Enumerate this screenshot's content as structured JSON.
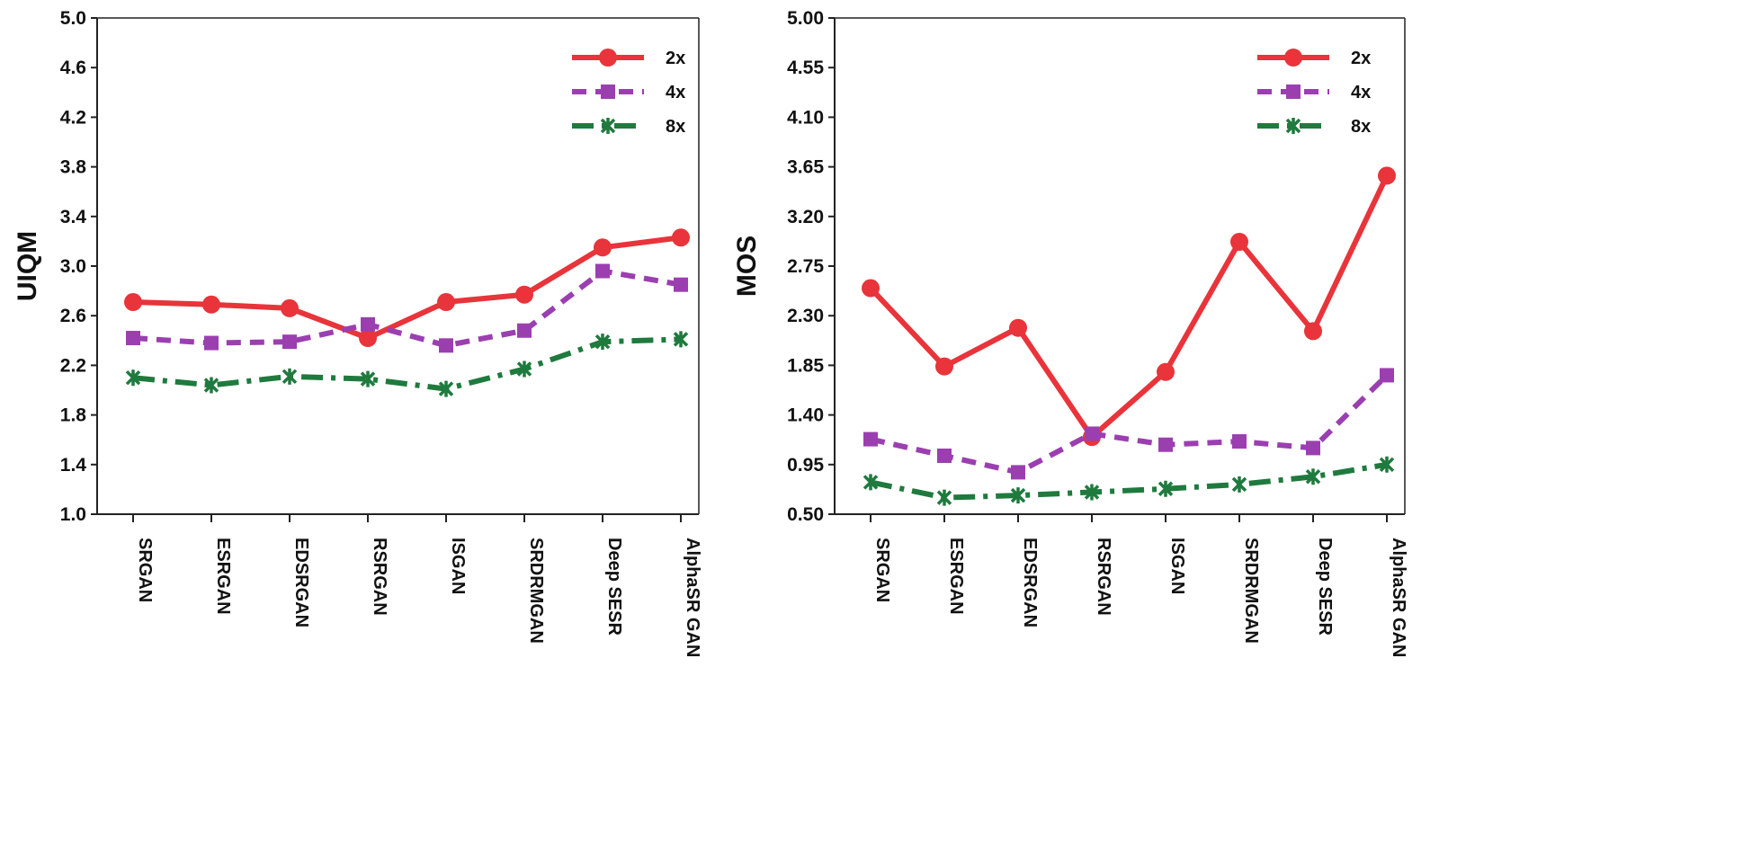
{
  "chart_data": [
    {
      "type": "line",
      "title": "",
      "xlabel": "",
      "ylabel": "UIQM",
      "ylim": [
        1.0,
        5.0
      ],
      "yticks": [
        "1.0",
        "1.4",
        "1.8",
        "2.2",
        "2.6",
        "3.0",
        "3.4",
        "3.8",
        "4.2",
        "4.6",
        "5.0"
      ],
      "categories": [
        "SRGAN",
        "ESRGAN",
        "EDSRGAN",
        "RSRGAN",
        "ISGAN",
        "SRDRMGAN",
        "Deep SESR",
        "AlphaSR GAN"
      ],
      "legend_position": "top-right",
      "grid": false,
      "series": [
        {
          "name": "2x",
          "color": "#e8343a",
          "marker": "circle",
          "dash": "solid",
          "values": [
            2.71,
            2.69,
            2.66,
            2.42,
            2.71,
            2.77,
            3.15,
            3.23
          ]
        },
        {
          "name": "4x",
          "color": "#9b3fb0",
          "marker": "square",
          "dash": "dashed",
          "values": [
            2.42,
            2.38,
            2.39,
            2.53,
            2.36,
            2.48,
            2.96,
            2.85
          ]
        },
        {
          "name": "8x",
          "color": "#1f7a3e",
          "marker": "star",
          "dash": "dashdot",
          "values": [
            2.1,
            2.04,
            2.11,
            2.09,
            2.01,
            2.17,
            2.39,
            2.41
          ]
        }
      ]
    },
    {
      "type": "line",
      "title": "",
      "xlabel": "",
      "ylabel": "MOS",
      "ylim": [
        0.5,
        5.0
      ],
      "yticks": [
        "0.50",
        "0.95",
        "1.40",
        "1.85",
        "2.30",
        "2.75",
        "3.20",
        "3.65",
        "4.10",
        "4.55",
        "5.00"
      ],
      "categories": [
        "SRGAN",
        "ESRGAN",
        "EDSRGAN",
        "RSRGAN",
        "ISGAN",
        "SRDRMGAN",
        "Deep SESR",
        "AlphaSR GAN"
      ],
      "legend_position": "top-right",
      "grid": false,
      "series": [
        {
          "name": "2x",
          "color": "#e8343a",
          "marker": "circle",
          "dash": "solid",
          "values": [
            2.55,
            1.84,
            2.19,
            1.2,
            1.79,
            2.97,
            2.16,
            3.57
          ]
        },
        {
          "name": "4x",
          "color": "#9b3fb0",
          "marker": "square",
          "dash": "dashed",
          "values": [
            1.18,
            1.03,
            0.88,
            1.23,
            1.13,
            1.16,
            1.1,
            1.76
          ]
        },
        {
          "name": "8x",
          "color": "#1f7a3e",
          "marker": "star",
          "dash": "dashdot",
          "values": [
            0.79,
            0.65,
            0.67,
            0.7,
            0.73,
            0.77,
            0.84,
            0.95
          ]
        }
      ]
    }
  ]
}
